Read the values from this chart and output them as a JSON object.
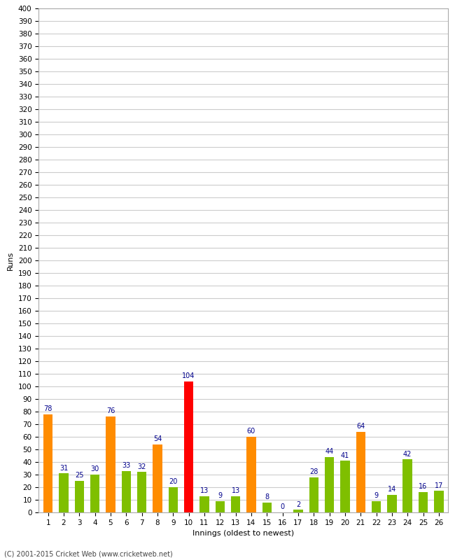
{
  "title": "",
  "xlabel": "Innings (oldest to newest)",
  "ylabel": "Runs",
  "values": [
    78,
    31,
    25,
    30,
    76,
    33,
    32,
    54,
    20,
    104,
    13,
    9,
    13,
    60,
    8,
    0,
    2,
    28,
    44,
    41,
    64,
    9,
    14,
    42,
    16,
    17
  ],
  "colors": [
    "#FF8C00",
    "#7FBF00",
    "#7FBF00",
    "#7FBF00",
    "#FF8C00",
    "#7FBF00",
    "#7FBF00",
    "#FF8C00",
    "#7FBF00",
    "#FF0000",
    "#7FBF00",
    "#7FBF00",
    "#7FBF00",
    "#FF8C00",
    "#7FBF00",
    "#7FBF00",
    "#7FBF00",
    "#7FBF00",
    "#7FBF00",
    "#7FBF00",
    "#FF8C00",
    "#7FBF00",
    "#7FBF00",
    "#7FBF00",
    "#7FBF00",
    "#7FBF00"
  ],
  "label_color": "#00008B",
  "categories": [
    "1",
    "2",
    "3",
    "4",
    "5",
    "6",
    "7",
    "8",
    "9",
    "10",
    "11",
    "12",
    "13",
    "14",
    "15",
    "16",
    "17",
    "18",
    "19",
    "20",
    "21",
    "22",
    "23",
    "24",
    "25",
    "26"
  ],
  "ylim": [
    0,
    400
  ],
  "ytick_step": 10,
  "background_color": "#FFFFFF",
  "grid_color": "#CCCCCC",
  "footer": "(C) 2001-2015 Cricket Web (www.cricketweb.net)",
  "bar_width": 0.6,
  "label_fontsize": 7,
  "tick_fontsize": 7.5,
  "xlabel_fontsize": 8,
  "ylabel_fontsize": 8
}
